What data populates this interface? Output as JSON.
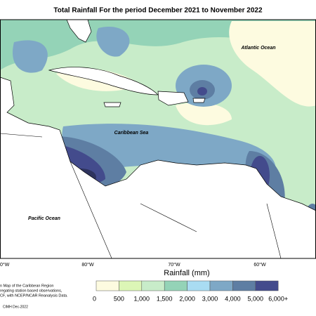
{
  "header": {
    "title": "Total Rainfall For the period December 2021 to November 2022"
  },
  "map": {
    "labels": [
      "Atlantic Ocean",
      "Caribbean Sea",
      "Pacific Ocean"
    ],
    "longitudes": [
      "0°W",
      "80°W",
      "70°W",
      "60°W"
    ]
  },
  "legend": {
    "title": "Rainfall (mm)",
    "labels": [
      "0",
      "500",
      "1,000",
      "1,500",
      "2,000",
      "3,000",
      "4,000",
      "5,000",
      "6,000+"
    ],
    "colors": [
      "#fdfbe0",
      "#dcf6b6",
      "#c8ecc9",
      "#94d3b7",
      "#a9dcf2",
      "#7ea8c6",
      "#5e7ea3",
      "#434b8c"
    ]
  },
  "note": {
    "lines": [
      "n Map of the Caribbean Region",
      "regating station based observations,",
      "CF, with NCEP/NCAR Reanalysis Data."
    ],
    "credit": "CIMH Dec-2022"
  }
}
